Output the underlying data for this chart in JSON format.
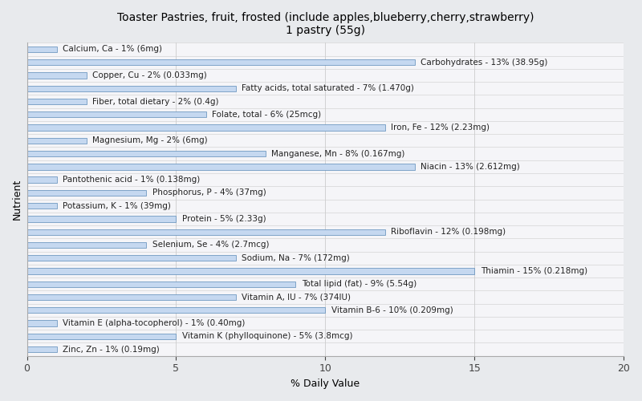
{
  "title": "Toaster Pastries, fruit, frosted (include apples,blueberry,cherry,strawberry)\n1 pastry (55g)",
  "xlabel": "% Daily Value",
  "ylabel": "Nutrient",
  "xlim": [
    0,
    20
  ],
  "xticks": [
    0,
    5,
    10,
    15,
    20
  ],
  "figure_bg": "#e8eaed",
  "plot_bg": "#f5f5f8",
  "bar_color": "#c5d8f0",
  "bar_edge_color": "#5a8ab8",
  "label_color": "#222222",
  "label_fontsize": 7.5,
  "title_fontsize": 10,
  "nutrients": [
    {
      "label": "Calcium, Ca - 1% (6mg)",
      "value": 1
    },
    {
      "label": "Carbohydrates - 13% (38.95g)",
      "value": 13
    },
    {
      "label": "Copper, Cu - 2% (0.033mg)",
      "value": 2
    },
    {
      "label": "Fatty acids, total saturated - 7% (1.470g)",
      "value": 7
    },
    {
      "label": "Fiber, total dietary - 2% (0.4g)",
      "value": 2
    },
    {
      "label": "Folate, total - 6% (25mcg)",
      "value": 6
    },
    {
      "label": "Iron, Fe - 12% (2.23mg)",
      "value": 12
    },
    {
      "label": "Magnesium, Mg - 2% (6mg)",
      "value": 2
    },
    {
      "label": "Manganese, Mn - 8% (0.167mg)",
      "value": 8
    },
    {
      "label": "Niacin - 13% (2.612mg)",
      "value": 13
    },
    {
      "label": "Pantothenic acid - 1% (0.138mg)",
      "value": 1
    },
    {
      "label": "Phosphorus, P - 4% (37mg)",
      "value": 4
    },
    {
      "label": "Potassium, K - 1% (39mg)",
      "value": 1
    },
    {
      "label": "Protein - 5% (2.33g)",
      "value": 5
    },
    {
      "label": "Riboflavin - 12% (0.198mg)",
      "value": 12
    },
    {
      "label": "Selenium, Se - 4% (2.7mcg)",
      "value": 4
    },
    {
      "label": "Sodium, Na - 7% (172mg)",
      "value": 7
    },
    {
      "label": "Thiamin - 15% (0.218mg)",
      "value": 15
    },
    {
      "label": "Total lipid (fat) - 9% (5.54g)",
      "value": 9
    },
    {
      "label": "Vitamin A, IU - 7% (374IU)",
      "value": 7
    },
    {
      "label": "Vitamin B-6 - 10% (0.209mg)",
      "value": 10
    },
    {
      "label": "Vitamin E (alpha-tocopherol) - 1% (0.40mg)",
      "value": 1
    },
    {
      "label": "Vitamin K (phylloquinone) - 5% (3.8mcg)",
      "value": 5
    },
    {
      "label": "Zinc, Zn - 1% (0.19mg)",
      "value": 1
    }
  ]
}
